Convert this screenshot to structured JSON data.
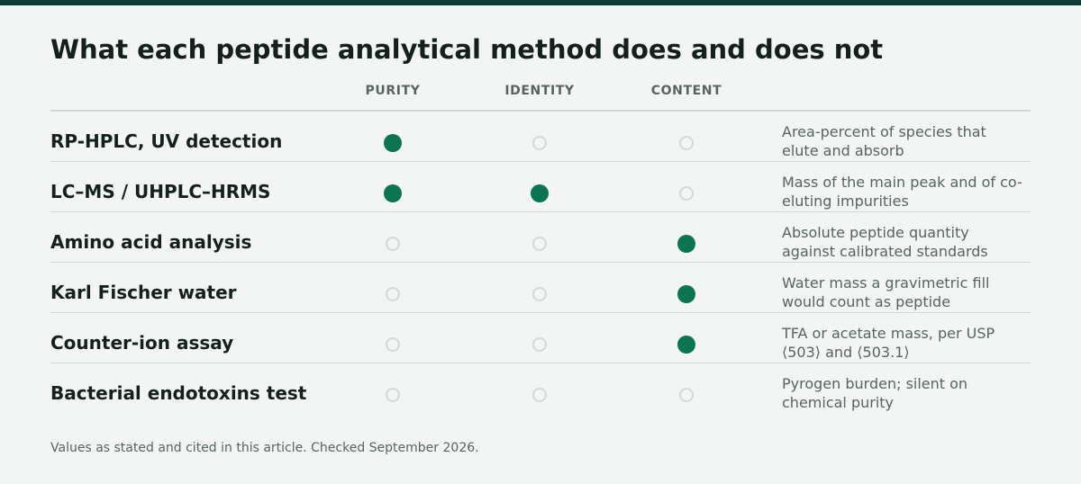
{
  "title": "What each peptide analytical method does and does not",
  "columns": [
    "PURITY",
    "IDENTITY",
    "CONTENT"
  ],
  "rows": [
    {
      "label": "RP-HPLC, UV detection",
      "purity": true,
      "identity": false,
      "content": false,
      "note": "Area-percent of species that elute and absorb"
    },
    {
      "label": "LC–MS / UHPLC–HRMS",
      "purity": true,
      "identity": true,
      "content": false,
      "note": "Mass of the main peak and of co-eluting impurities"
    },
    {
      "label": "Amino acid analysis",
      "purity": false,
      "identity": false,
      "content": true,
      "note": "Absolute peptide quantity against calibrated standards"
    },
    {
      "label": "Karl Fischer water",
      "purity": false,
      "identity": false,
      "content": true,
      "note": "Water mass a gravimetric fill would count as peptide"
    },
    {
      "label": "Counter-ion assay",
      "purity": false,
      "identity": false,
      "content": true,
      "note": "TFA or acetate mass, per USP ⟨503⟩ and ⟨503.1⟩"
    },
    {
      "label": "Bacterial endotoxins test",
      "purity": false,
      "identity": false,
      "content": false,
      "note": "Pyrogen burden; silent on chemical purity"
    }
  ],
  "footnote": "Values as stated and cited in this article. Checked September 2026.",
  "colors": {
    "filled": "#0b7553",
    "empty": "#d3d9d6",
    "topbar": "#0f3b34"
  }
}
